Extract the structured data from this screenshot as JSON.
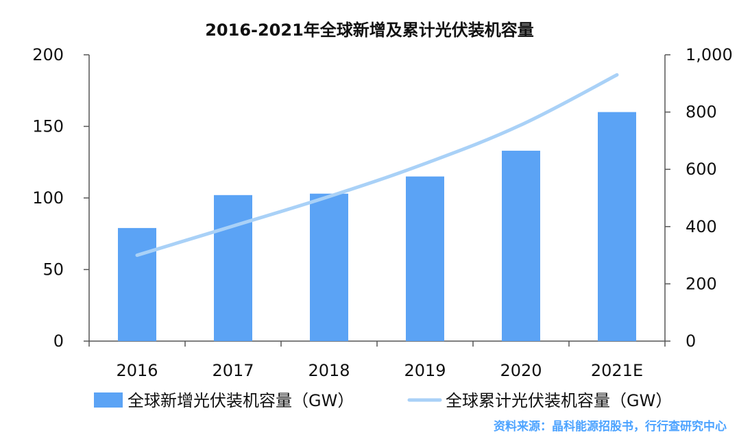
{
  "chart_data": {
    "type": "bar+line",
    "title": "2016-2021年全球新增及累计光伏装机容量",
    "categories": [
      "2016",
      "2017",
      "2018",
      "2019",
      "2020",
      "2021E"
    ],
    "series": [
      {
        "name": "全球新增光伏装机容量（GW）",
        "type": "bar",
        "axis": "left",
        "color": "#5ba3f5",
        "values": [
          79,
          102,
          103,
          115,
          133,
          160
        ]
      },
      {
        "name": "全球累计光伏装机容量（GW）",
        "type": "line",
        "axis": "right",
        "color": "#a9d1f7",
        "values": [
          300,
          402,
          505,
          620,
          755,
          930
        ]
      }
    ],
    "y_left": {
      "min": 0,
      "max": 200,
      "ticks": [
        0,
        50,
        100,
        150,
        200
      ],
      "tick_labels": [
        "0",
        "50",
        "100",
        "150",
        "200"
      ]
    },
    "y_right": {
      "min": 0,
      "max": 1000,
      "ticks": [
        0,
        200,
        400,
        600,
        800,
        1000
      ],
      "tick_labels": [
        "0",
        "200",
        "400",
        "600",
        "800",
        "1,000"
      ]
    },
    "grid": false,
    "legend_position": "bottom"
  },
  "source": "资料来源：晶科能源招股书，行行查研究中心"
}
